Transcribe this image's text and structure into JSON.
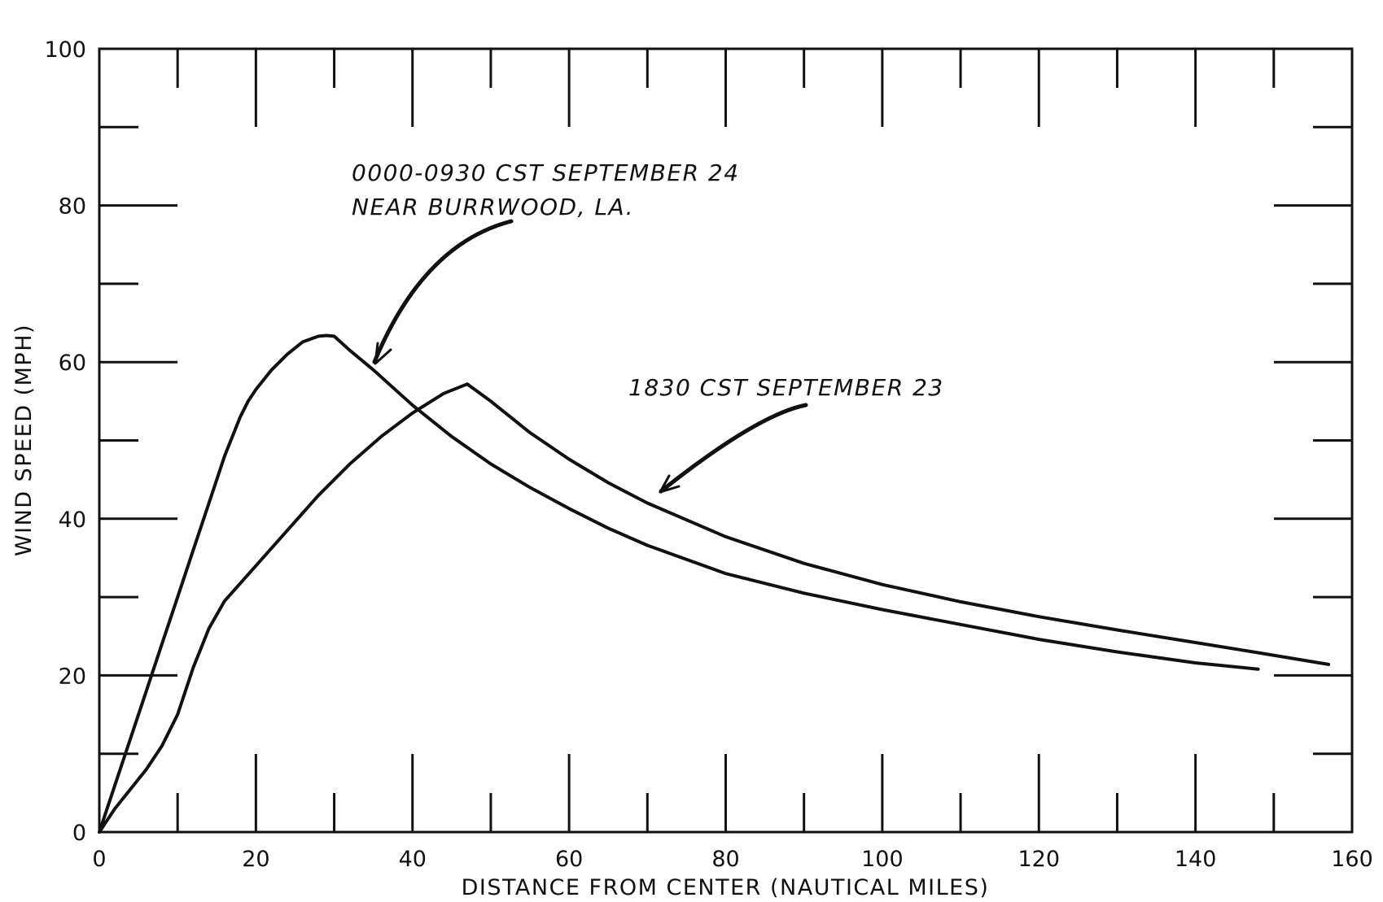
{
  "chart_data": {
    "type": "line",
    "title": "",
    "xlabel": "DISTANCE FROM CENTER (NAUTICAL MILES)",
    "ylabel": "WIND SPEED (MPH)",
    "xlim": [
      0,
      160
    ],
    "ylim": [
      0,
      100
    ],
    "x_ticks": [
      0,
      20,
      40,
      60,
      80,
      100,
      120,
      140,
      160
    ],
    "y_ticks": [
      0,
      20,
      40,
      60,
      80,
      100
    ],
    "x_tick_labels": [
      "0",
      "20",
      "40",
      "60",
      "80",
      "100",
      "120",
      "140",
      "160"
    ],
    "y_tick_labels": [
      "0",
      "20",
      "40",
      "60",
      "80",
      "100"
    ],
    "grid": false,
    "legend": "none",
    "annotations": [
      {
        "lines": [
          "0000-0930 CST SEPTEMBER 24",
          "NEAR BURRWOOD, LA."
        ],
        "points_to_series": 0
      },
      {
        "lines": [
          "1830 CST SEPTEMBER 23"
        ],
        "points_to_series": 1
      }
    ],
    "series": [
      {
        "x": [
          0,
          2,
          4,
          6,
          8,
          10,
          12,
          14,
          16,
          18,
          19,
          20,
          22,
          24,
          26,
          28,
          29,
          30,
          32,
          35,
          40,
          45,
          50,
          55,
          60,
          65,
          70,
          80,
          90,
          100,
          110,
          120,
          130,
          140,
          148
        ],
        "y": [
          0,
          6,
          12,
          18,
          24,
          30,
          36,
          42,
          48,
          53,
          55,
          56.5,
          59,
          61,
          62.6,
          63.3,
          63.4,
          63.3,
          61.5,
          59,
          54.5,
          50.5,
          47,
          44,
          41.3,
          38.8,
          36.6,
          33,
          30.5,
          28.4,
          26.5,
          24.6,
          23,
          21.6,
          20.8
        ]
      },
      {
        "x": [
          0,
          2,
          4,
          6,
          8,
          10,
          12,
          14,
          16,
          20,
          24,
          28,
          32,
          36,
          40,
          44,
          47,
          50,
          55,
          60,
          65,
          70,
          80,
          90,
          100,
          110,
          120,
          130,
          140,
          148,
          157
        ],
        "y": [
          0,
          3,
          5.5,
          8,
          11,
          15,
          21,
          26,
          29.5,
          34,
          38.5,
          43,
          47,
          50.5,
          53.5,
          56,
          57.2,
          55,
          51,
          47.6,
          44.6,
          42,
          37.7,
          34.3,
          31.6,
          29.4,
          27.5,
          25.8,
          24.2,
          22.9,
          21.4
        ]
      }
    ]
  }
}
